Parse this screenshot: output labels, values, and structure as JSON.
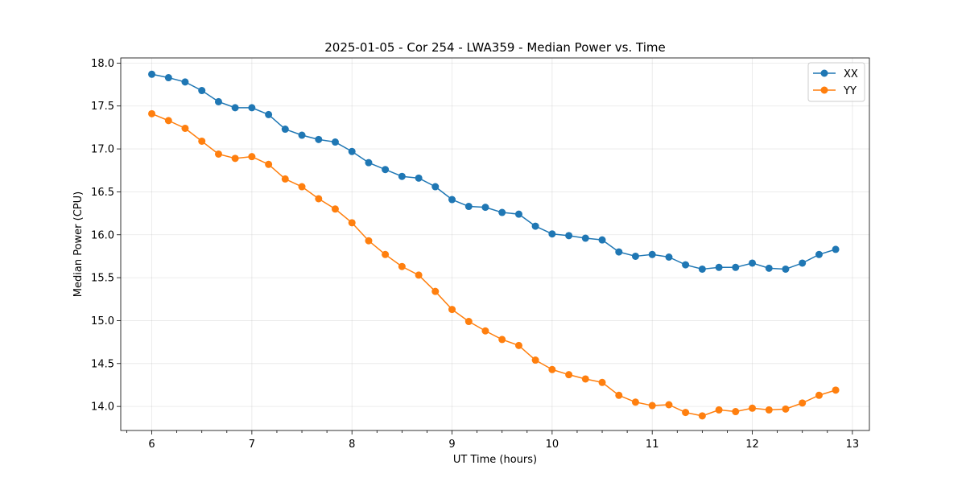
{
  "chart_data": {
    "type": "line",
    "title": "2025-01-05 - Cor 254 - LWA359 - Median Power vs. Time",
    "xlabel": "UT Time (hours)",
    "ylabel": "Median Power (CPU)",
    "xlim": [
      5.69,
      13.17
    ],
    "ylim": [
      13.72,
      18.06
    ],
    "xticks": [
      6,
      7,
      8,
      9,
      10,
      11,
      12,
      13
    ],
    "xticks_minor": [
      5.75,
      6.25,
      6.5,
      6.75,
      7.25,
      7.5,
      7.75,
      8.25,
      8.5,
      8.75,
      9.25,
      9.5,
      9.75,
      10.25,
      10.5,
      10.75,
      11.25,
      11.5,
      11.75,
      12.25,
      12.5,
      12.75
    ],
    "yticks": [
      14.0,
      14.5,
      15.0,
      15.5,
      16.0,
      16.5,
      17.0,
      17.5,
      18.0
    ],
    "grid": true,
    "legend_position": "top-right",
    "x": [
      6.0,
      6.167,
      6.333,
      6.5,
      6.667,
      6.833,
      7.0,
      7.167,
      7.333,
      7.5,
      7.667,
      7.833,
      8.0,
      8.167,
      8.333,
      8.5,
      8.667,
      8.833,
      9.0,
      9.167,
      9.333,
      9.5,
      9.667,
      9.833,
      10.0,
      10.167,
      10.333,
      10.5,
      10.667,
      10.833,
      11.0,
      11.167,
      11.333,
      11.5,
      11.667,
      11.833,
      12.0,
      12.167,
      12.333,
      12.5,
      12.667,
      12.833
    ],
    "series": [
      {
        "name": "XX",
        "color": "#1f77b4",
        "values": [
          17.87,
          17.83,
          17.78,
          17.68,
          17.55,
          17.48,
          17.48,
          17.4,
          17.23,
          17.16,
          17.11,
          17.08,
          16.97,
          16.84,
          16.76,
          16.68,
          16.66,
          16.56,
          16.41,
          16.33,
          16.32,
          16.26,
          16.24,
          16.1,
          16.01,
          15.99,
          15.96,
          15.94,
          15.8,
          15.75,
          15.77,
          15.74,
          15.65,
          15.6,
          15.62,
          15.62,
          15.67,
          15.61,
          15.6,
          15.67,
          15.77,
          15.83
        ]
      },
      {
        "name": "YY",
        "color": "#ff7f0e",
        "values": [
          17.41,
          17.33,
          17.24,
          17.09,
          16.94,
          16.89,
          16.91,
          16.82,
          16.65,
          16.56,
          16.42,
          16.3,
          16.14,
          15.93,
          15.77,
          15.63,
          15.53,
          15.34,
          15.13,
          14.99,
          14.88,
          14.78,
          14.71,
          14.54,
          14.43,
          14.37,
          14.32,
          14.28,
          14.13,
          14.05,
          14.01,
          14.02,
          13.93,
          13.89,
          13.96,
          13.94,
          13.98,
          13.96,
          13.97,
          14.04,
          14.13,
          14.19
        ]
      }
    ]
  }
}
